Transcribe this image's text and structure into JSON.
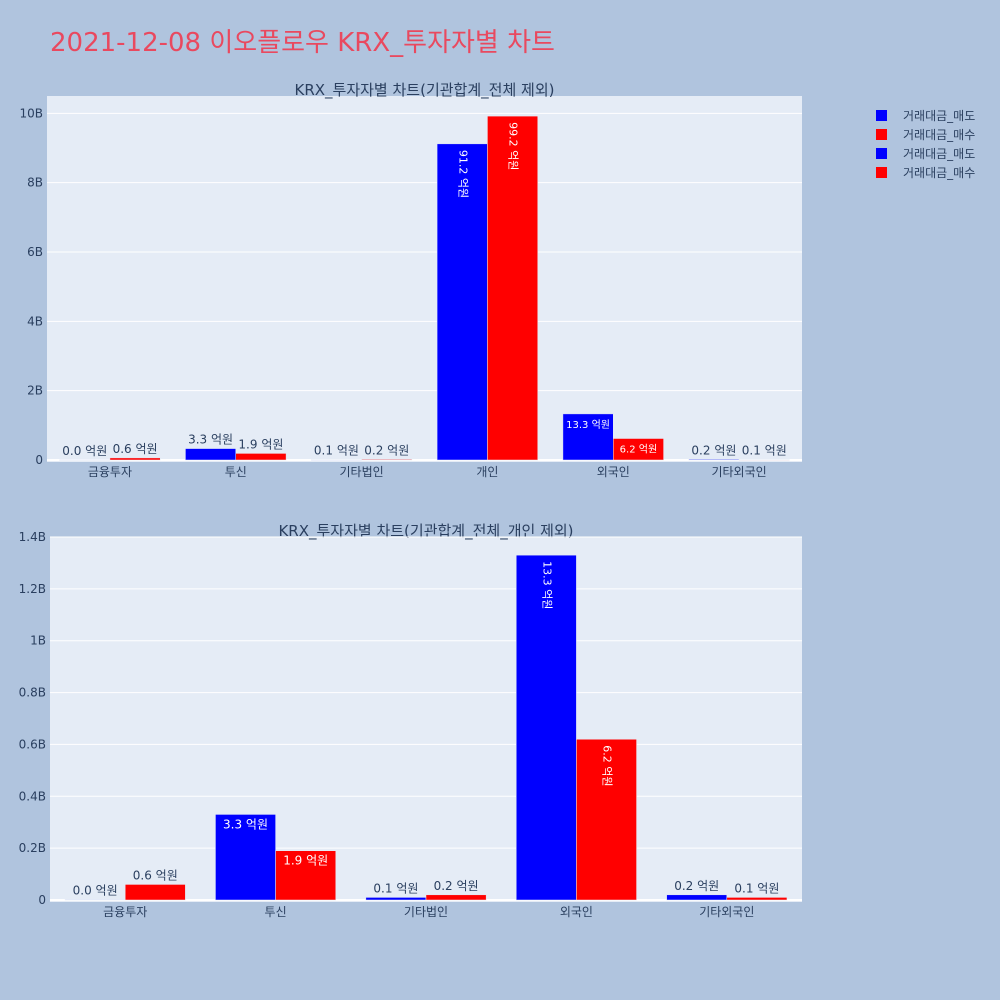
{
  "page": {
    "title": "2021-12-08 이오플로우 KRX_투자자별 차트"
  },
  "legend": [
    {
      "label": "거래대금_매도",
      "color": "#0000ff"
    },
    {
      "label": "거래대금_매수",
      "color": "#ff0000"
    },
    {
      "label": "거래대금_매도",
      "color": "#0000ff"
    },
    {
      "label": "거래대금_매수",
      "color": "#ff0000"
    }
  ],
  "chart_data": [
    {
      "type": "bar",
      "title": "KRX_투자자별 차트(기관합계_전체 제외)",
      "categories": [
        "금융투자",
        "투신",
        "기타법인",
        "개인",
        "외국인",
        "기타외국인"
      ],
      "series": [
        {
          "name": "거래대금_매도",
          "color": "#0000ff",
          "values": [
            0.002,
            0.33,
            0.01,
            9.12,
            1.33,
            0.02
          ],
          "labels": [
            "0.0 억원",
            "3.3 억원",
            "0.1 억원",
            "91.2 억원",
            "13.3 억원",
            "0.2 억원"
          ]
        },
        {
          "name": "거래대금_매수",
          "color": "#ff0000",
          "values": [
            0.06,
            0.19,
            0.02,
            9.92,
            0.62,
            0.01
          ],
          "labels": [
            "0.6 억원",
            "1.9 억원",
            "0.2 억원",
            "99.2 억원",
            "6.2 억원",
            "0.1 억원"
          ]
        }
      ],
      "ylim": [
        0,
        10.5
      ],
      "yticks": [
        0,
        2,
        4,
        6,
        8,
        10
      ],
      "ytick_labels": [
        "0",
        "2B",
        "4B",
        "6B",
        "8B",
        "10B"
      ],
      "grid": true
    },
    {
      "type": "bar",
      "title": "KRX_투자자별 차트(기관합계_전체_개인 제외)",
      "categories": [
        "금융투자",
        "투신",
        "기타법인",
        "외국인",
        "기타외국인"
      ],
      "series": [
        {
          "name": "거래대금_매도",
          "color": "#0000ff",
          "values": [
            0.002,
            0.33,
            0.01,
            1.33,
            0.02
          ],
          "labels": [
            "0.0 억원",
            "3.3 억원",
            "0.1 억원",
            "13.3 억원",
            "0.2 억원"
          ]
        },
        {
          "name": "거래대금_매수",
          "color": "#ff0000",
          "values": [
            0.06,
            0.19,
            0.02,
            0.62,
            0.01
          ],
          "labels": [
            "0.6 억원",
            "1.9 억원",
            "0.2 억원",
            "6.2 억원",
            "0.1 억원"
          ]
        }
      ],
      "ylim": [
        0,
        1.4
      ],
      "yticks": [
        0,
        0.2,
        0.4,
        0.6,
        0.8,
        1.0,
        1.2,
        1.4
      ],
      "ytick_labels": [
        "0",
        "0.2B",
        "0.4B",
        "0.6B",
        "0.8B",
        "1B",
        "1.2B",
        "1.4B"
      ],
      "grid": true
    }
  ]
}
